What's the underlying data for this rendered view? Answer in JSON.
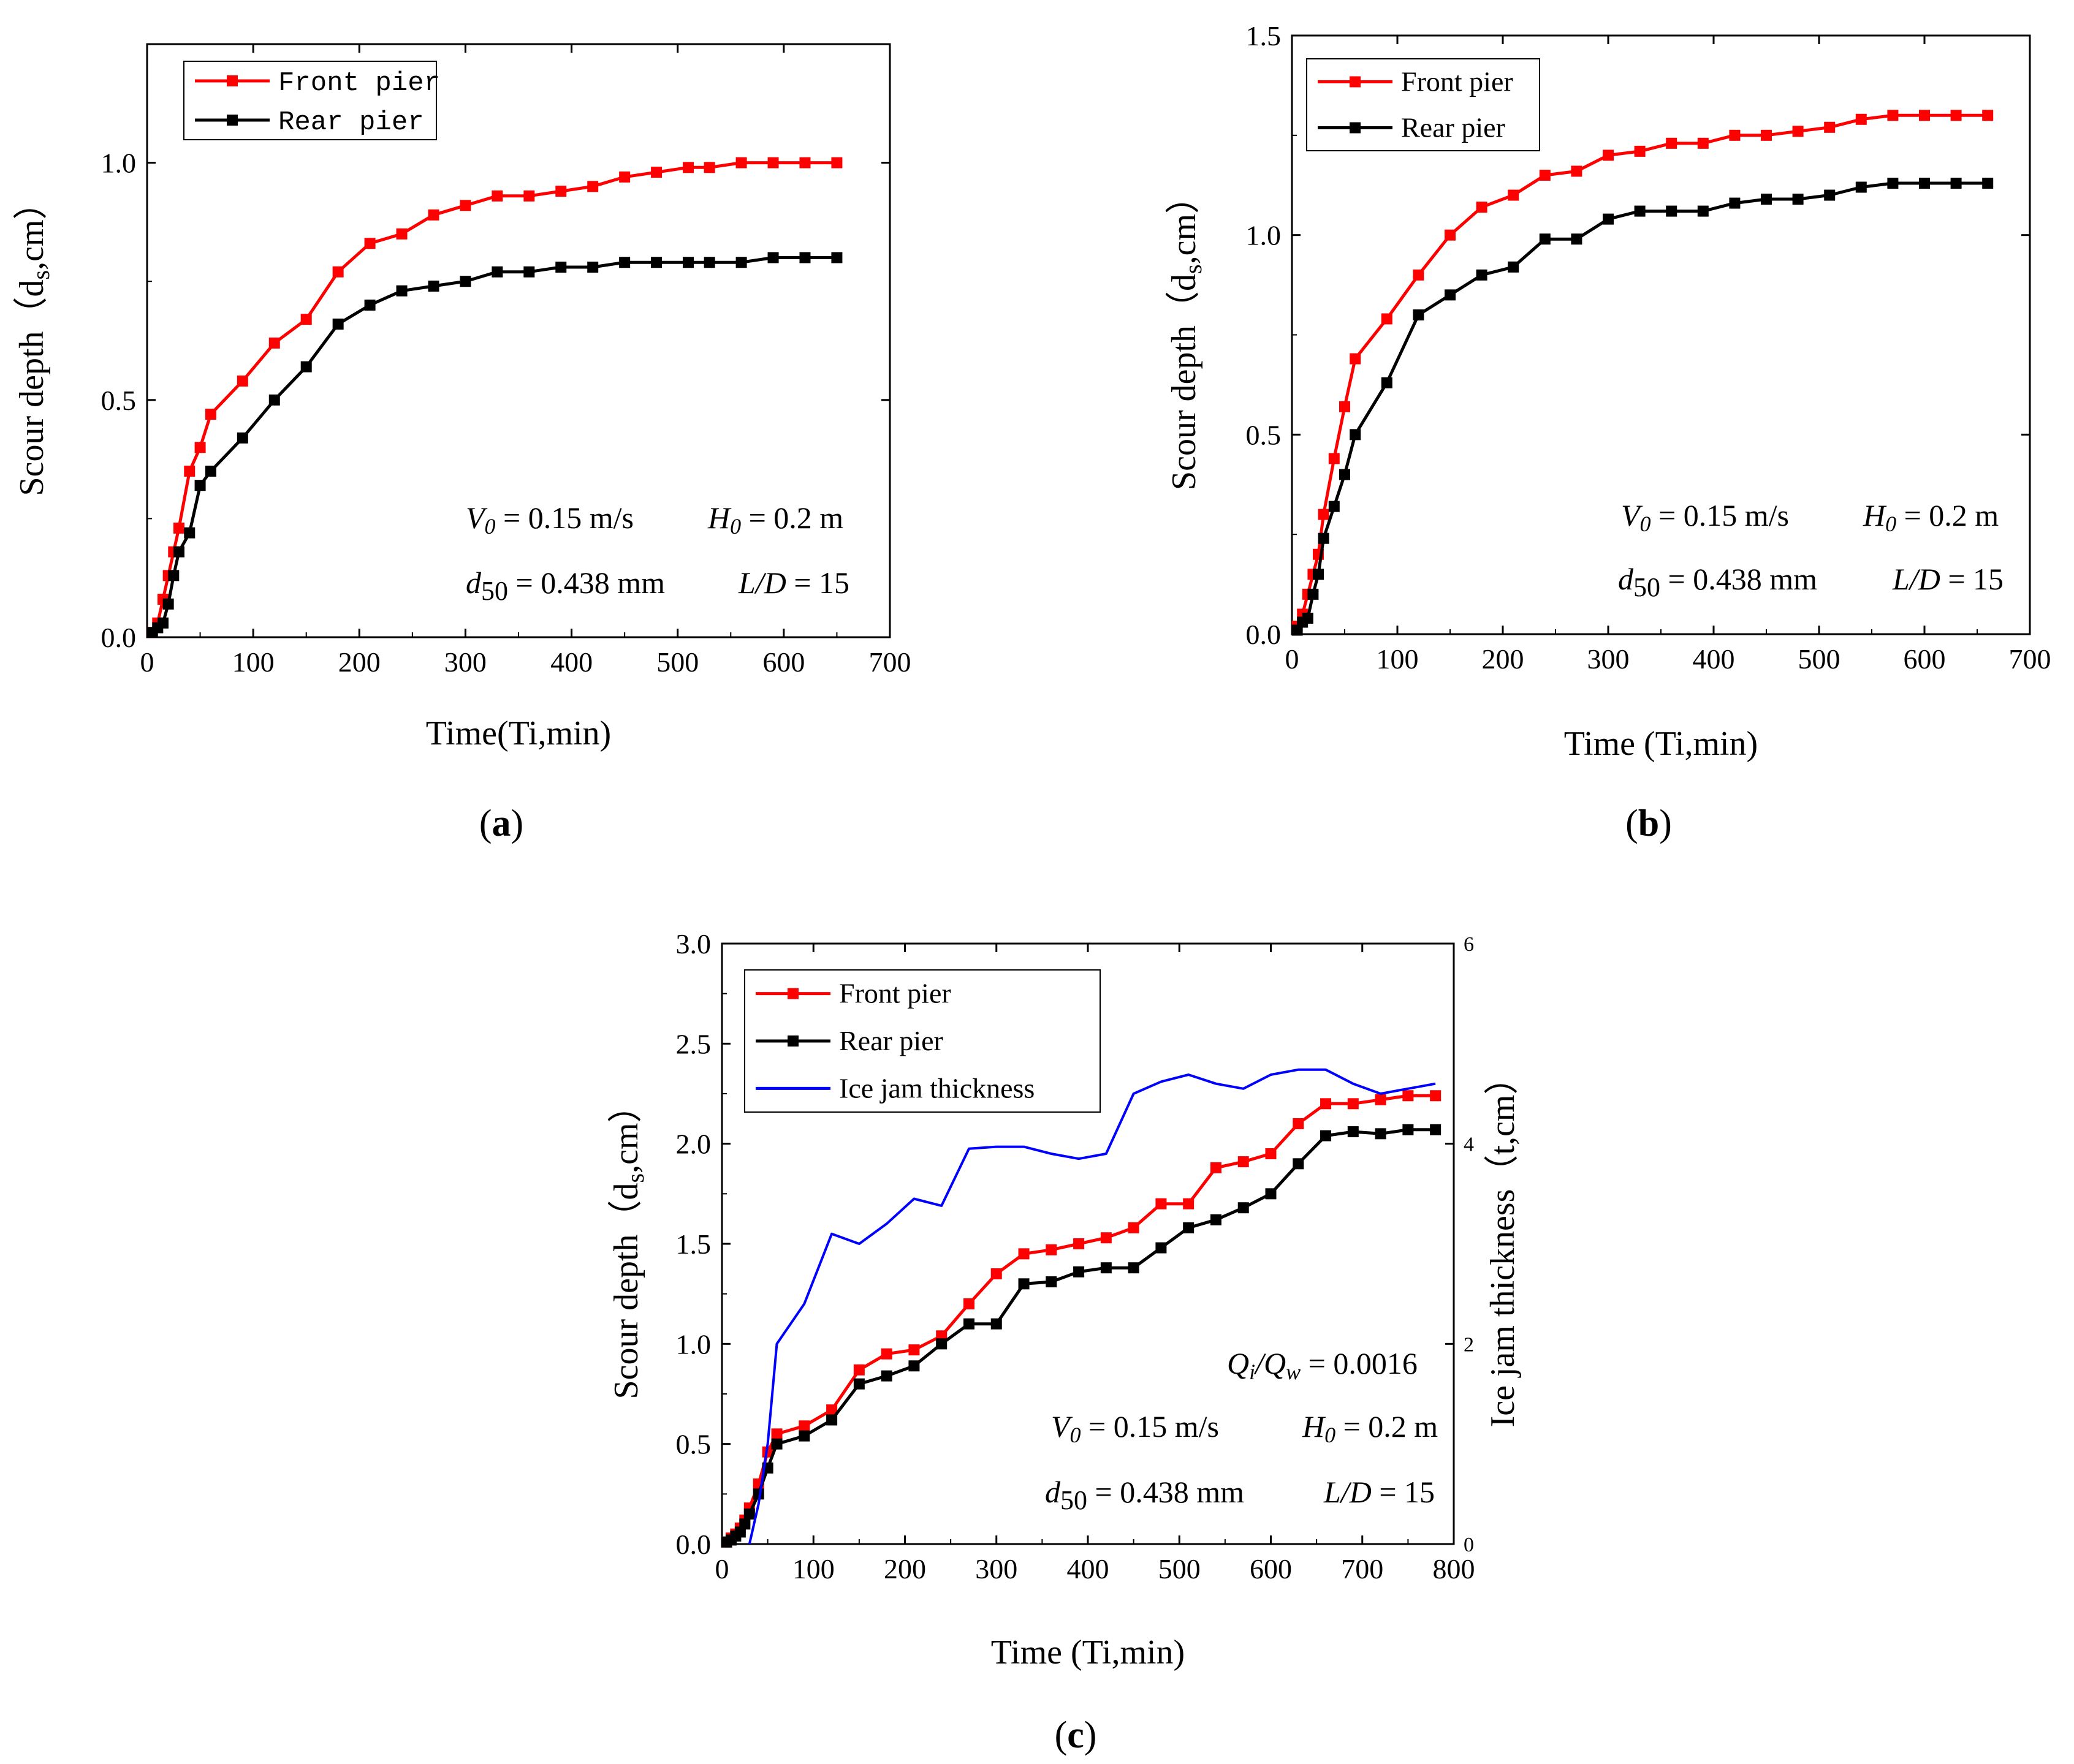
{
  "captions": [
    "a",
    "b",
    "c"
  ],
  "chart_data": [
    {
      "type": "line",
      "panel": "a",
      "xlabel": "Time(Ti,min)",
      "ylabel_main": "Scour depth（d",
      "ylabel_sub": "s",
      "ylabel_tail": ",cm）",
      "xlim": [
        0,
        700
      ],
      "ylim": [
        0,
        1.25
      ],
      "xticks": [
        0,
        100,
        200,
        300,
        400,
        500,
        600,
        700
      ],
      "xtick_labels": [
        "0",
        "100",
        "200",
        "300",
        "400",
        "500",
        "600",
        "700"
      ],
      "yticks": [
        0,
        0.5,
        1.0
      ],
      "ytick_labels": [
        "0.0",
        "0.5",
        "1.0"
      ],
      "legend": [
        "Front pier",
        "Rear pier"
      ],
      "annotations": {
        "v0": "V",
        "v0_sub": "0",
        "v0_val": " = 0.15 m/s",
        "h0": "H",
        "h0_sub": "0",
        "h0_val": " = 0.2 m",
        "d50": "d",
        "d50_sub": "50",
        "d50_val": " = 0.438 mm",
        "ld": "L/D",
        "ld_val": " = 15"
      },
      "series": [
        {
          "name": "Front pier",
          "color": "#ff0000",
          "x": [
            5,
            10,
            15,
            20,
            25,
            30,
            40,
            50,
            60,
            90,
            120,
            150,
            180,
            210,
            240,
            270,
            300,
            330,
            360,
            390,
            420,
            450,
            480,
            510,
            530,
            560,
            590,
            620,
            650
          ],
          "y": [
            0.01,
            0.03,
            0.08,
            0.13,
            0.18,
            0.23,
            0.35,
            0.4,
            0.47,
            0.54,
            0.62,
            0.67,
            0.77,
            0.83,
            0.85,
            0.89,
            0.91,
            0.93,
            0.93,
            0.94,
            0.95,
            0.97,
            0.98,
            0.99,
            0.99,
            1.0,
            1.0,
            1.0,
            1.0
          ]
        },
        {
          "name": "Rear pier",
          "color": "#000000",
          "x": [
            5,
            10,
            15,
            20,
            25,
            30,
            40,
            50,
            60,
            90,
            120,
            150,
            180,
            210,
            240,
            270,
            300,
            330,
            360,
            390,
            420,
            450,
            480,
            510,
            530,
            560,
            590,
            620,
            650
          ],
          "y": [
            0.01,
            0.02,
            0.03,
            0.07,
            0.13,
            0.18,
            0.22,
            0.32,
            0.35,
            0.42,
            0.5,
            0.57,
            0.66,
            0.7,
            0.73,
            0.74,
            0.75,
            0.77,
            0.77,
            0.78,
            0.78,
            0.79,
            0.79,
            0.79,
            0.79,
            0.79,
            0.8,
            0.8,
            0.8
          ]
        }
      ]
    },
    {
      "type": "line",
      "panel": "b",
      "xlabel": "Time (Ti,min)",
      "ylabel_main": "Scour depth（d",
      "ylabel_sub": "s",
      "ylabel_tail": ",cm）",
      "xlim": [
        0,
        700
      ],
      "ylim": [
        0,
        1.5
      ],
      "xticks": [
        0,
        100,
        200,
        300,
        400,
        500,
        600,
        700
      ],
      "xtick_labels": [
        "0",
        "100",
        "200",
        "300",
        "400",
        "500",
        "600",
        "700"
      ],
      "yticks": [
        0,
        0.5,
        1.0,
        1.5
      ],
      "ytick_labels": [
        "0.0",
        "0.5",
        "1.0",
        "1.5"
      ],
      "legend": [
        "Front pier",
        "Rear pier"
      ],
      "annotations": {
        "v0": "V",
        "v0_sub": "0",
        "v0_val": " = 0.15 m/s",
        "h0": "H",
        "h0_sub": "0",
        "h0_val": " = 0.2 m",
        "d50": "d",
        "d50_sub": "50",
        "d50_val": " = 0.438 mm",
        "ld": "L/D",
        "ld_val": " = 15"
      },
      "series": [
        {
          "name": "Front pier",
          "color": "#ff0000",
          "x": [
            5,
            10,
            15,
            20,
            25,
            30,
            40,
            50,
            60,
            90,
            120,
            150,
            180,
            210,
            240,
            270,
            300,
            330,
            360,
            390,
            420,
            450,
            480,
            510,
            540,
            570,
            600,
            630,
            660
          ],
          "y": [
            0.02,
            0.05,
            0.1,
            0.15,
            0.2,
            0.3,
            0.44,
            0.57,
            0.69,
            0.79,
            0.9,
            1.0,
            1.07,
            1.1,
            1.15,
            1.16,
            1.2,
            1.21,
            1.23,
            1.23,
            1.25,
            1.25,
            1.26,
            1.27,
            1.29,
            1.3,
            1.3,
            1.3,
            1.3
          ]
        },
        {
          "name": "Rear pier",
          "color": "#000000",
          "x": [
            5,
            10,
            15,
            20,
            25,
            30,
            40,
            50,
            60,
            90,
            120,
            150,
            180,
            210,
            240,
            270,
            300,
            330,
            360,
            390,
            420,
            450,
            480,
            510,
            540,
            570,
            600,
            630,
            660
          ],
          "y": [
            0.01,
            0.03,
            0.04,
            0.1,
            0.15,
            0.24,
            0.32,
            0.4,
            0.5,
            0.63,
            0.8,
            0.85,
            0.9,
            0.92,
            0.99,
            0.99,
            1.04,
            1.06,
            1.06,
            1.06,
            1.08,
            1.09,
            1.09,
            1.1,
            1.12,
            1.13,
            1.13,
            1.13,
            1.13
          ]
        }
      ]
    },
    {
      "type": "line",
      "panel": "c",
      "xlabel": "Time (Ti,min)",
      "ylabel_main": "Scour depth（d",
      "ylabel_sub": "s",
      "ylabel_tail": ",cm）",
      "ylabel_right": "Ice jam thickness（t,cm）",
      "xlim": [
        0,
        800
      ],
      "ylim": [
        0,
        3.0
      ],
      "ylim_right": [
        0,
        6
      ],
      "xticks": [
        0,
        100,
        200,
        300,
        400,
        500,
        600,
        700,
        800
      ],
      "xtick_labels": [
        "0",
        "100",
        "200",
        "300",
        "400",
        "500",
        "600",
        "700",
        "800"
      ],
      "yticks": [
        0,
        0.5,
        1.0,
        1.5,
        2.0,
        2.5,
        3.0
      ],
      "ytick_labels": [
        "0.0",
        "0.5",
        "1.0",
        "1.5",
        "2.0",
        "2.5",
        "3.0"
      ],
      "yticks_right": [
        0,
        2,
        4,
        6
      ],
      "ytick_labels_right": [
        "0",
        "2",
        "4",
        "6"
      ],
      "legend": [
        "Front pier",
        "Rear pier",
        "Ice jam thickness"
      ],
      "annotations": {
        "q": "Q",
        "q_sub": "i",
        "q_slash": "/Q",
        "q_sub2": "w",
        "q_val": " = 0.0016",
        "v0": "V",
        "v0_sub": "0",
        "v0_val": " = 0.15 m/s",
        "h0": "H",
        "h0_sub": "0",
        "h0_val": " = 0.2 m",
        "d50": "d",
        "d50_sub": "50",
        "d50_val": " = 0.438 mm",
        "ld": "L/D",
        "ld_val": " = 15"
      },
      "series": [
        {
          "name": "Front pier",
          "color": "#ff0000",
          "x": [
            5,
            10,
            15,
            20,
            25,
            30,
            40,
            50,
            60,
            90,
            120,
            150,
            180,
            210,
            240,
            270,
            300,
            330,
            360,
            390,
            420,
            450,
            480,
            510,
            540,
            570,
            600,
            630,
            660,
            690,
            720,
            750,
            780
          ],
          "y": [
            0.01,
            0.03,
            0.05,
            0.08,
            0.12,
            0.18,
            0.3,
            0.46,
            0.55,
            0.59,
            0.67,
            0.87,
            0.95,
            0.97,
            1.04,
            1.2,
            1.35,
            1.45,
            1.47,
            1.5,
            1.53,
            1.58,
            1.7,
            1.7,
            1.88,
            1.91,
            1.95,
            2.1,
            2.2,
            2.2,
            2.22,
            2.24,
            2.24
          ]
        },
        {
          "name": "Rear pier",
          "color": "#000000",
          "x": [
            5,
            10,
            15,
            20,
            25,
            30,
            40,
            50,
            60,
            90,
            120,
            150,
            180,
            210,
            240,
            270,
            300,
            330,
            360,
            390,
            420,
            450,
            480,
            510,
            540,
            570,
            600,
            630,
            660,
            690,
            720,
            750,
            780
          ],
          "y": [
            0.01,
            0.02,
            0.04,
            0.06,
            0.1,
            0.15,
            0.25,
            0.38,
            0.5,
            0.54,
            0.62,
            0.8,
            0.84,
            0.89,
            1.0,
            1.1,
            1.1,
            1.3,
            1.31,
            1.36,
            1.38,
            1.38,
            1.48,
            1.58,
            1.62,
            1.68,
            1.75,
            1.9,
            2.04,
            2.06,
            2.05,
            2.07,
            2.07
          ]
        },
        {
          "name": "Ice jam thickness",
          "axis": "right",
          "color": "#0000ff",
          "x": [
            30,
            40,
            50,
            60,
            90,
            120,
            150,
            180,
            210,
            240,
            270,
            300,
            330,
            360,
            390,
            420,
            450,
            480,
            510,
            540,
            570,
            600,
            630,
            660,
            690,
            720,
            750,
            780
          ],
          "y": [
            0,
            0.4,
            1.0,
            2.0,
            2.4,
            3.1,
            3.0,
            3.2,
            3.45,
            3.38,
            3.95,
            3.97,
            3.97,
            3.9,
            3.85,
            3.9,
            4.5,
            4.62,
            4.69,
            4.6,
            4.55,
            4.69,
            4.74,
            4.74,
            4.6,
            4.5,
            4.55,
            4.6
          ]
        }
      ]
    }
  ]
}
